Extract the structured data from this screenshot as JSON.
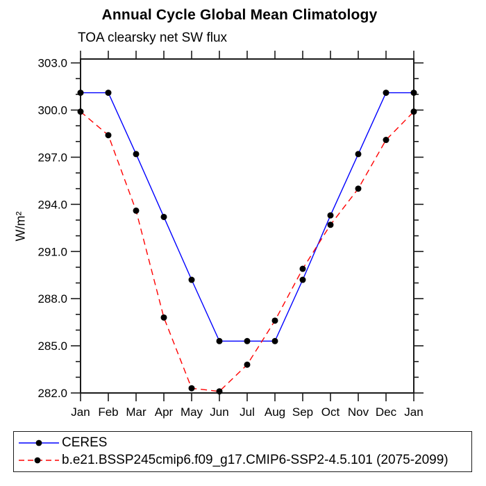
{
  "chart_data": {
    "type": "line",
    "title": "Annual Cycle Global Mean Climatology",
    "subtitle": "TOA clearsky net SW flux",
    "ylabel": "W/m²",
    "xlabel": "",
    "categories": [
      "Jan",
      "Feb",
      "Mar",
      "Apr",
      "May",
      "Jun",
      "Jul",
      "Aug",
      "Sep",
      "Oct",
      "Nov",
      "Dec",
      "Jan"
    ],
    "series": [
      {
        "name": "CERES",
        "color": "#0000ff",
        "line_style": "solid",
        "marker": "filled-circle",
        "marker_color": "#000000",
        "values": [
          301.1,
          301.1,
          297.2,
          293.2,
          289.2,
          285.3,
          285.3,
          285.3,
          289.2,
          293.3,
          297.2,
          301.1,
          301.1
        ]
      },
      {
        "name": "b.e21.BSSP245cmip6.f09_g17.CMIP6-SSP2-4.5.101 (2075-2099)",
        "color": "#ff0000",
        "line_style": "dashed",
        "marker": "filled-circle",
        "marker_color": "#000000",
        "values": [
          299.9,
          298.4,
          293.6,
          286.8,
          282.3,
          282.1,
          283.8,
          286.6,
          289.9,
          292.7,
          295.0,
          298.1,
          299.9
        ]
      }
    ],
    "ylim": [
      282.0,
      303.3
    ],
    "yticks": [
      282,
      285,
      288,
      291,
      294,
      297,
      300,
      303
    ],
    "ytick_labels": [
      "282.0",
      "285.0",
      "288.0",
      "291.0",
      "294.0",
      "297.0",
      "300.0",
      "303.0"
    ],
    "y_minor_tick_interval": 1,
    "grid": false,
    "legend_position": "bottom-left-box",
    "axis_color": "#1a1a1a"
  }
}
